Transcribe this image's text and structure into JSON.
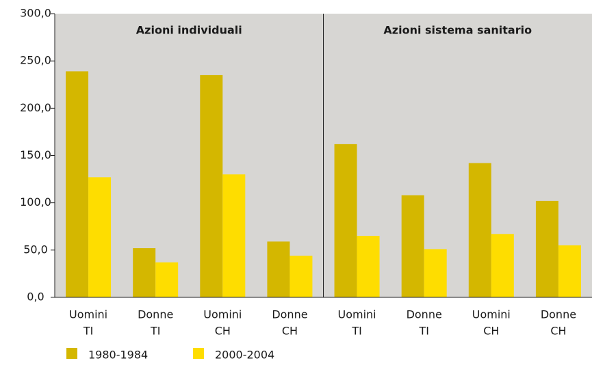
{
  "chart_data": {
    "type": "bar",
    "annotations": [
      "Azioni individuali",
      "Azioni sistema sanitario"
    ],
    "categories": [
      [
        "Uomini",
        "TI"
      ],
      [
        "Donne",
        "TI"
      ],
      [
        "Uomini",
        "CH"
      ],
      [
        "Donne",
        "CH"
      ],
      [
        "Uomini",
        "TI"
      ],
      [
        "Donne",
        "TI"
      ],
      [
        "Uomini",
        "CH"
      ],
      [
        "Donne",
        "CH"
      ]
    ],
    "series": [
      {
        "name": "1980-1984",
        "color": "#d4b700",
        "values": [
          239,
          52,
          235,
          59,
          162,
          108,
          142,
          102
        ]
      },
      {
        "name": "2000-2004",
        "color": "#fedd00",
        "values": [
          127,
          37,
          130,
          44,
          65,
          51,
          67,
          55
        ]
      }
    ],
    "ylim": [
      0,
      300
    ],
    "yticks": [
      {
        "value": 0,
        "label": "0,0"
      },
      {
        "value": 50,
        "label": "50,0"
      },
      {
        "value": 100,
        "label": "100,0"
      },
      {
        "value": 150,
        "label": "150,0"
      },
      {
        "value": 200,
        "label": "200,0"
      },
      {
        "value": 250,
        "label": "250,0"
      },
      {
        "value": 300,
        "label": "300,0"
      }
    ],
    "background": "#d7d6d3"
  }
}
